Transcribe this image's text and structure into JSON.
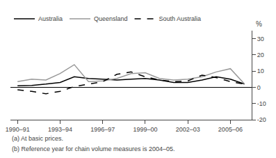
{
  "chart_data": {
    "type": "line",
    "y_label": "%",
    "annotations": [
      "(a) At basic prices.",
      "(b) Reference year for chain volume measures is 2004–05."
    ],
    "categories": [
      "1990–91",
      null,
      null,
      "1993–94",
      null,
      null,
      "1996–97",
      null,
      null,
      "1999–00",
      null,
      null,
      "2002–03",
      null,
      null,
      "2005–06",
      null
    ],
    "series": [
      {
        "name": "Australia",
        "color": "#000000",
        "line_style": "solid",
        "values": [
          1.0,
          1.2,
          2.0,
          3.0,
          6.5,
          5.5,
          5.0,
          4.5,
          5.0,
          5.5,
          4.5,
          3.0,
          3.0,
          4.5,
          6.5,
          5.0,
          2.0
        ]
      },
      {
        "name": "Queensland",
        "color": "#999999",
        "line_style": "solid",
        "values": [
          3.5,
          5.0,
          4.5,
          8.5,
          14.0,
          3.5,
          4.0,
          5.5,
          8.5,
          9.0,
          5.5,
          4.5,
          5.0,
          6.5,
          9.5,
          11.5,
          2.0
        ]
      },
      {
        "name": "South Australia",
        "color": "#000000",
        "line_style": "dashed",
        "values": [
          -1.5,
          -2.5,
          -4.0,
          -2.5,
          0.5,
          2.0,
          3.5,
          8.0,
          9.5,
          6.5,
          4.5,
          3.5,
          4.0,
          7.5,
          6.0,
          3.5,
          2.0
        ]
      }
    ],
    "ylim": [
      -20,
      35
    ],
    "yticks": [
      -20,
      -10,
      0,
      10,
      20,
      30
    ],
    "grid": false,
    "legend": "top left"
  }
}
